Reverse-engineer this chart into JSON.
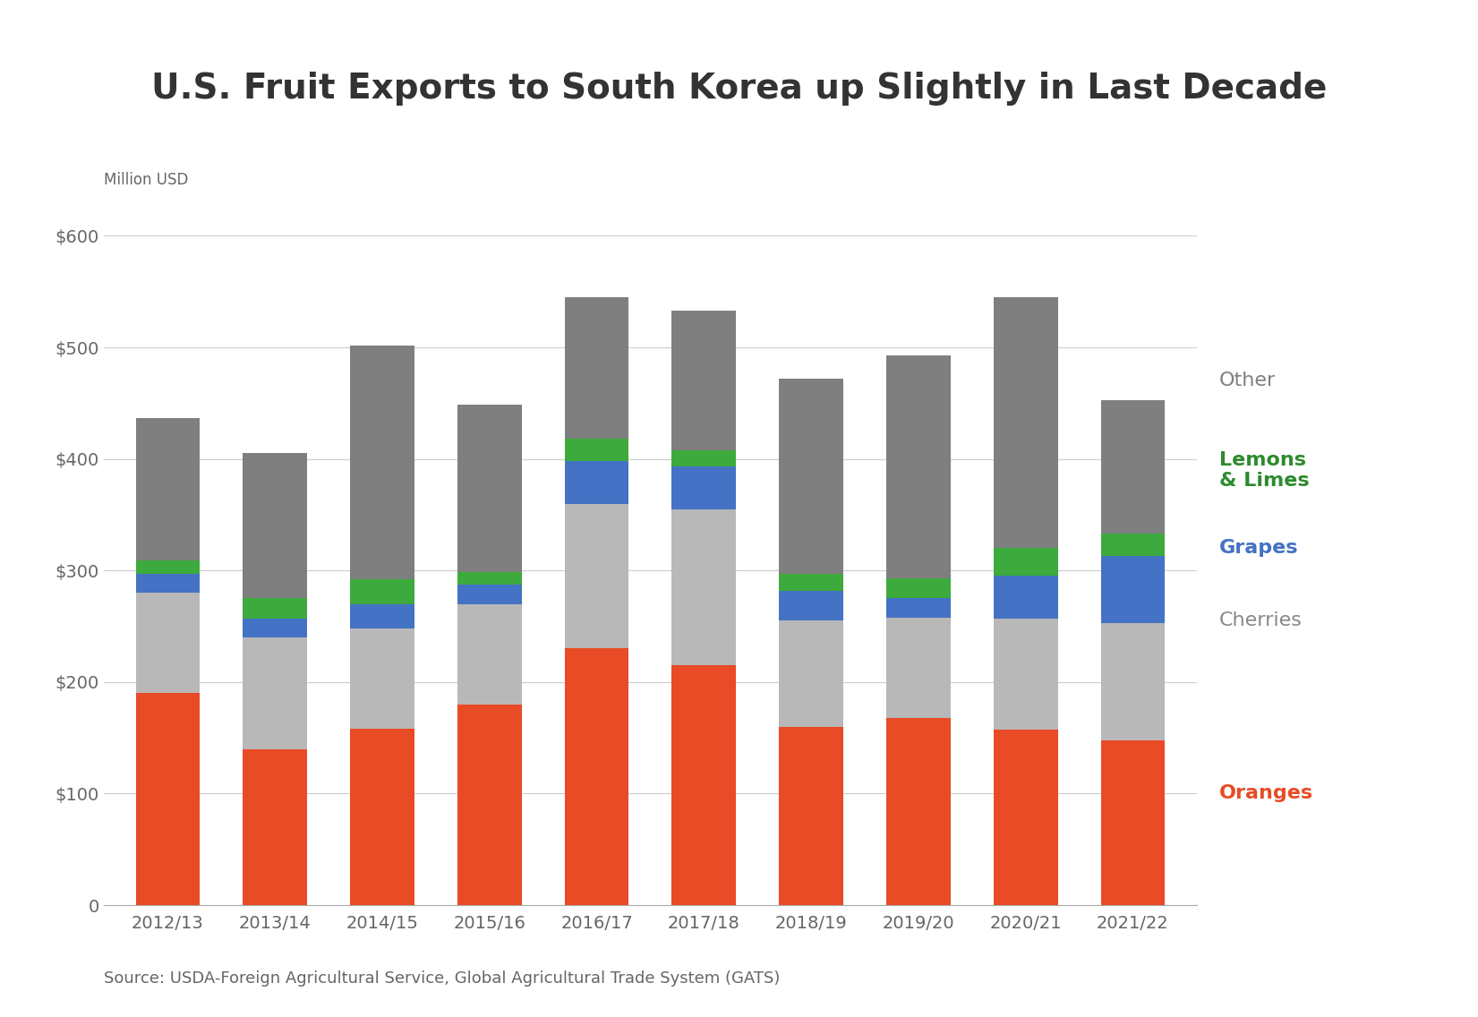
{
  "title": "U.S. Fruit Exports to South Korea up Slightly in Last Decade",
  "ylabel": "Million USD",
  "source": "Source: USDA-Foreign Agricultural Service, Global Agricultural Trade System (GATS)",
  "years": [
    "2012/13",
    "2013/14",
    "2014/15",
    "2015/16",
    "2016/17",
    "2017/18",
    "2018/19",
    "2019/20",
    "2020/21",
    "2021/22"
  ],
  "oranges": [
    190,
    140,
    158,
    180,
    230,
    215,
    160,
    168,
    157,
    148
  ],
  "cherries": [
    90,
    100,
    90,
    90,
    130,
    140,
    95,
    90,
    100,
    105
  ],
  "grapes": [
    17,
    17,
    22,
    17,
    38,
    38,
    27,
    17,
    38,
    60
  ],
  "lemons_limes": [
    12,
    18,
    22,
    12,
    20,
    15,
    15,
    18,
    25,
    20
  ],
  "other": [
    128,
    130,
    210,
    150,
    127,
    125,
    175,
    200,
    225,
    120
  ],
  "colors": {
    "oranges": "#E84B25",
    "cherries": "#B8B8B8",
    "grapes": "#4472C4",
    "lemons_limes": "#3DAA3D",
    "other": "#7F7F7F"
  },
  "legend_labels": {
    "other": "Other",
    "lemons_limes": "Lemons\n& Limes",
    "grapes": "Grapes",
    "cherries": "Cherries",
    "oranges": "Oranges"
  },
  "legend_colors": {
    "other": "#7F7F7F",
    "lemons_limes": "#2E8B2E",
    "grapes": "#4472C4",
    "cherries": "#888888",
    "oranges": "#E84B25"
  },
  "legend_bold": {
    "other": false,
    "lemons_limes": true,
    "grapes": true,
    "cherries": false,
    "oranges": true
  },
  "ylim": [
    0,
    620
  ],
  "yticks": [
    0,
    100,
    200,
    300,
    400,
    500,
    600
  ],
  "ytick_labels": [
    "0",
    "$100",
    "$200",
    "$300",
    "$400",
    "$500",
    "$600"
  ],
  "background_color": "#FFFFFF",
  "title_fontsize": 28,
  "axis_fontsize": 14,
  "legend_fontsize": 16,
  "source_fontsize": 13
}
